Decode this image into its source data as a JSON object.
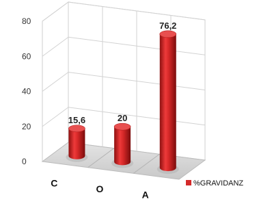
{
  "chart_data": {
    "type": "bar",
    "style": "3d-cylinder",
    "categories": [
      "C",
      "O",
      "A"
    ],
    "series": [
      {
        "name": "%GRAVIDANZ",
        "values": [
          15.6,
          20,
          76.2
        ],
        "color": "#d42a2a"
      }
    ],
    "data_labels": [
      "15,6",
      "20",
      "76,2"
    ],
    "y_ticks": [
      "0",
      "20",
      "40",
      "60",
      "80"
    ],
    "ylim": [
      0,
      80
    ],
    "grid": true,
    "legend_position": "right"
  }
}
